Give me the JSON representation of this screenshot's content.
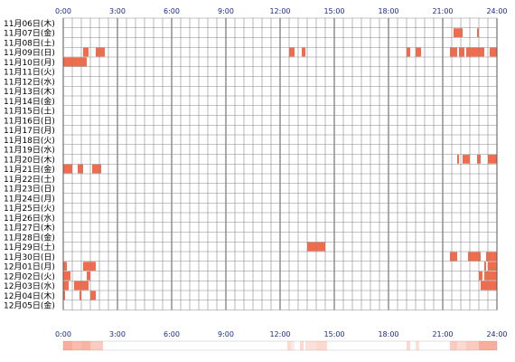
{
  "chart_data": {
    "type": "heatmap",
    "title": "",
    "xlabel": "",
    "ylabel": "",
    "x_ticks": [
      "0:00",
      "3:00",
      "6:00",
      "9:00",
      "12:00",
      "15:00",
      "18:00",
      "21:00",
      "24:00"
    ],
    "xlim_hours": [
      0,
      24
    ],
    "grid": true,
    "colors": {
      "activity": "#f26b4c",
      "grid": "#888888",
      "major_grid": "#555555",
      "tick_text": "#1a2a8a"
    },
    "rows": [
      {
        "label": "11月06日(木)",
        "intervals": []
      },
      {
        "label": "11月07日(金)",
        "intervals": [
          [
            21.6,
            22.1
          ],
          [
            22.9,
            23.0
          ]
        ]
      },
      {
        "label": "11月08日(土)",
        "intervals": []
      },
      {
        "label": "11月09日(日)",
        "intervals": [
          [
            1.1,
            1.4
          ],
          [
            1.8,
            2.3
          ],
          [
            12.5,
            12.8
          ],
          [
            13.2,
            13.4
          ],
          [
            19.0,
            19.2
          ],
          [
            19.5,
            19.8
          ],
          [
            21.4,
            21.8
          ],
          [
            21.9,
            22.2
          ],
          [
            22.3,
            23.3
          ],
          [
            23.6,
            24.0
          ]
        ]
      },
      {
        "label": "11月10日(月)",
        "intervals": [
          [
            0.0,
            1.3
          ]
        ]
      },
      {
        "label": "11月11日(火)",
        "intervals": []
      },
      {
        "label": "11月12日(水)",
        "intervals": []
      },
      {
        "label": "11月13日(木)",
        "intervals": []
      },
      {
        "label": "11月14日(金)",
        "intervals": []
      },
      {
        "label": "11月15日(土)",
        "intervals": []
      },
      {
        "label": "11月16日(日)",
        "intervals": []
      },
      {
        "label": "11月17日(月)",
        "intervals": []
      },
      {
        "label": "11月18日(火)",
        "intervals": []
      },
      {
        "label": "11月19日(水)",
        "intervals": []
      },
      {
        "label": "11月20日(木)",
        "intervals": [
          [
            21.8,
            21.9
          ],
          [
            22.1,
            22.5
          ],
          [
            22.9,
            23.1
          ],
          [
            23.5,
            24.0
          ]
        ]
      },
      {
        "label": "11月21日(金)",
        "intervals": [
          [
            0.0,
            0.5
          ],
          [
            0.8,
            1.1
          ],
          [
            1.6,
            2.1
          ]
        ]
      },
      {
        "label": "11月22日(土)",
        "intervals": []
      },
      {
        "label": "11月23日(日)",
        "intervals": []
      },
      {
        "label": "11月24日(月)",
        "intervals": []
      },
      {
        "label": "11月25日(火)",
        "intervals": []
      },
      {
        "label": "11月26日(水)",
        "intervals": []
      },
      {
        "label": "11月27日(木)",
        "intervals": []
      },
      {
        "label": "11月28日(金)",
        "intervals": []
      },
      {
        "label": "11月29日(土)",
        "intervals": [
          [
            13.5,
            14.5
          ]
        ]
      },
      {
        "label": "11月30日(日)",
        "intervals": [
          [
            21.4,
            21.8
          ],
          [
            22.4,
            23.1
          ],
          [
            23.4,
            24.0
          ]
        ]
      },
      {
        "label": "12月01日(月)",
        "intervals": [
          [
            0.0,
            0.2
          ],
          [
            1.1,
            1.8
          ],
          [
            23.3,
            23.4
          ],
          [
            23.5,
            24.0
          ]
        ]
      },
      {
        "label": "12月02日(火)",
        "intervals": [
          [
            0.0,
            0.4
          ],
          [
            1.3,
            1.5
          ],
          [
            23.0,
            23.2
          ],
          [
            23.3,
            24.0
          ]
        ]
      },
      {
        "label": "12月03日(水)",
        "intervals": [
          [
            0.0,
            0.3
          ],
          [
            0.6,
            1.4
          ],
          [
            23.1,
            24.0
          ]
        ]
      },
      {
        "label": "12月04日(木)",
        "intervals": [
          [
            0.0,
            0.1
          ],
          [
            0.9,
            1.0
          ],
          [
            1.5,
            1.8
          ]
        ]
      },
      {
        "label": "12月05日(金)",
        "intervals": []
      }
    ],
    "summary_strip": [
      {
        "range": [
          0.0,
          0.5
        ],
        "level": 0.55
      },
      {
        "range": [
          0.5,
          1.0
        ],
        "level": 0.45
      },
      {
        "range": [
          1.0,
          1.5
        ],
        "level": 0.5
      },
      {
        "range": [
          1.5,
          2.2
        ],
        "level": 0.35
      },
      {
        "range": [
          12.4,
          12.6
        ],
        "level": 0.25
      },
      {
        "range": [
          12.6,
          12.8
        ],
        "level": 0.15
      },
      {
        "range": [
          13.1,
          13.3
        ],
        "level": 0.25
      },
      {
        "range": [
          13.4,
          14.0
        ],
        "level": 0.2
      },
      {
        "range": [
          14.0,
          14.6
        ],
        "level": 0.25
      },
      {
        "range": [
          19.0,
          19.2
        ],
        "level": 0.25
      },
      {
        "range": [
          19.5,
          19.7
        ],
        "level": 0.2
      },
      {
        "range": [
          21.4,
          21.8
        ],
        "level": 0.35
      },
      {
        "range": [
          21.8,
          22.3
        ],
        "level": 0.25
      },
      {
        "range": [
          22.3,
          23.0
        ],
        "level": 0.35
      },
      {
        "range": [
          23.0,
          24.0
        ],
        "level": 0.55
      }
    ]
  }
}
